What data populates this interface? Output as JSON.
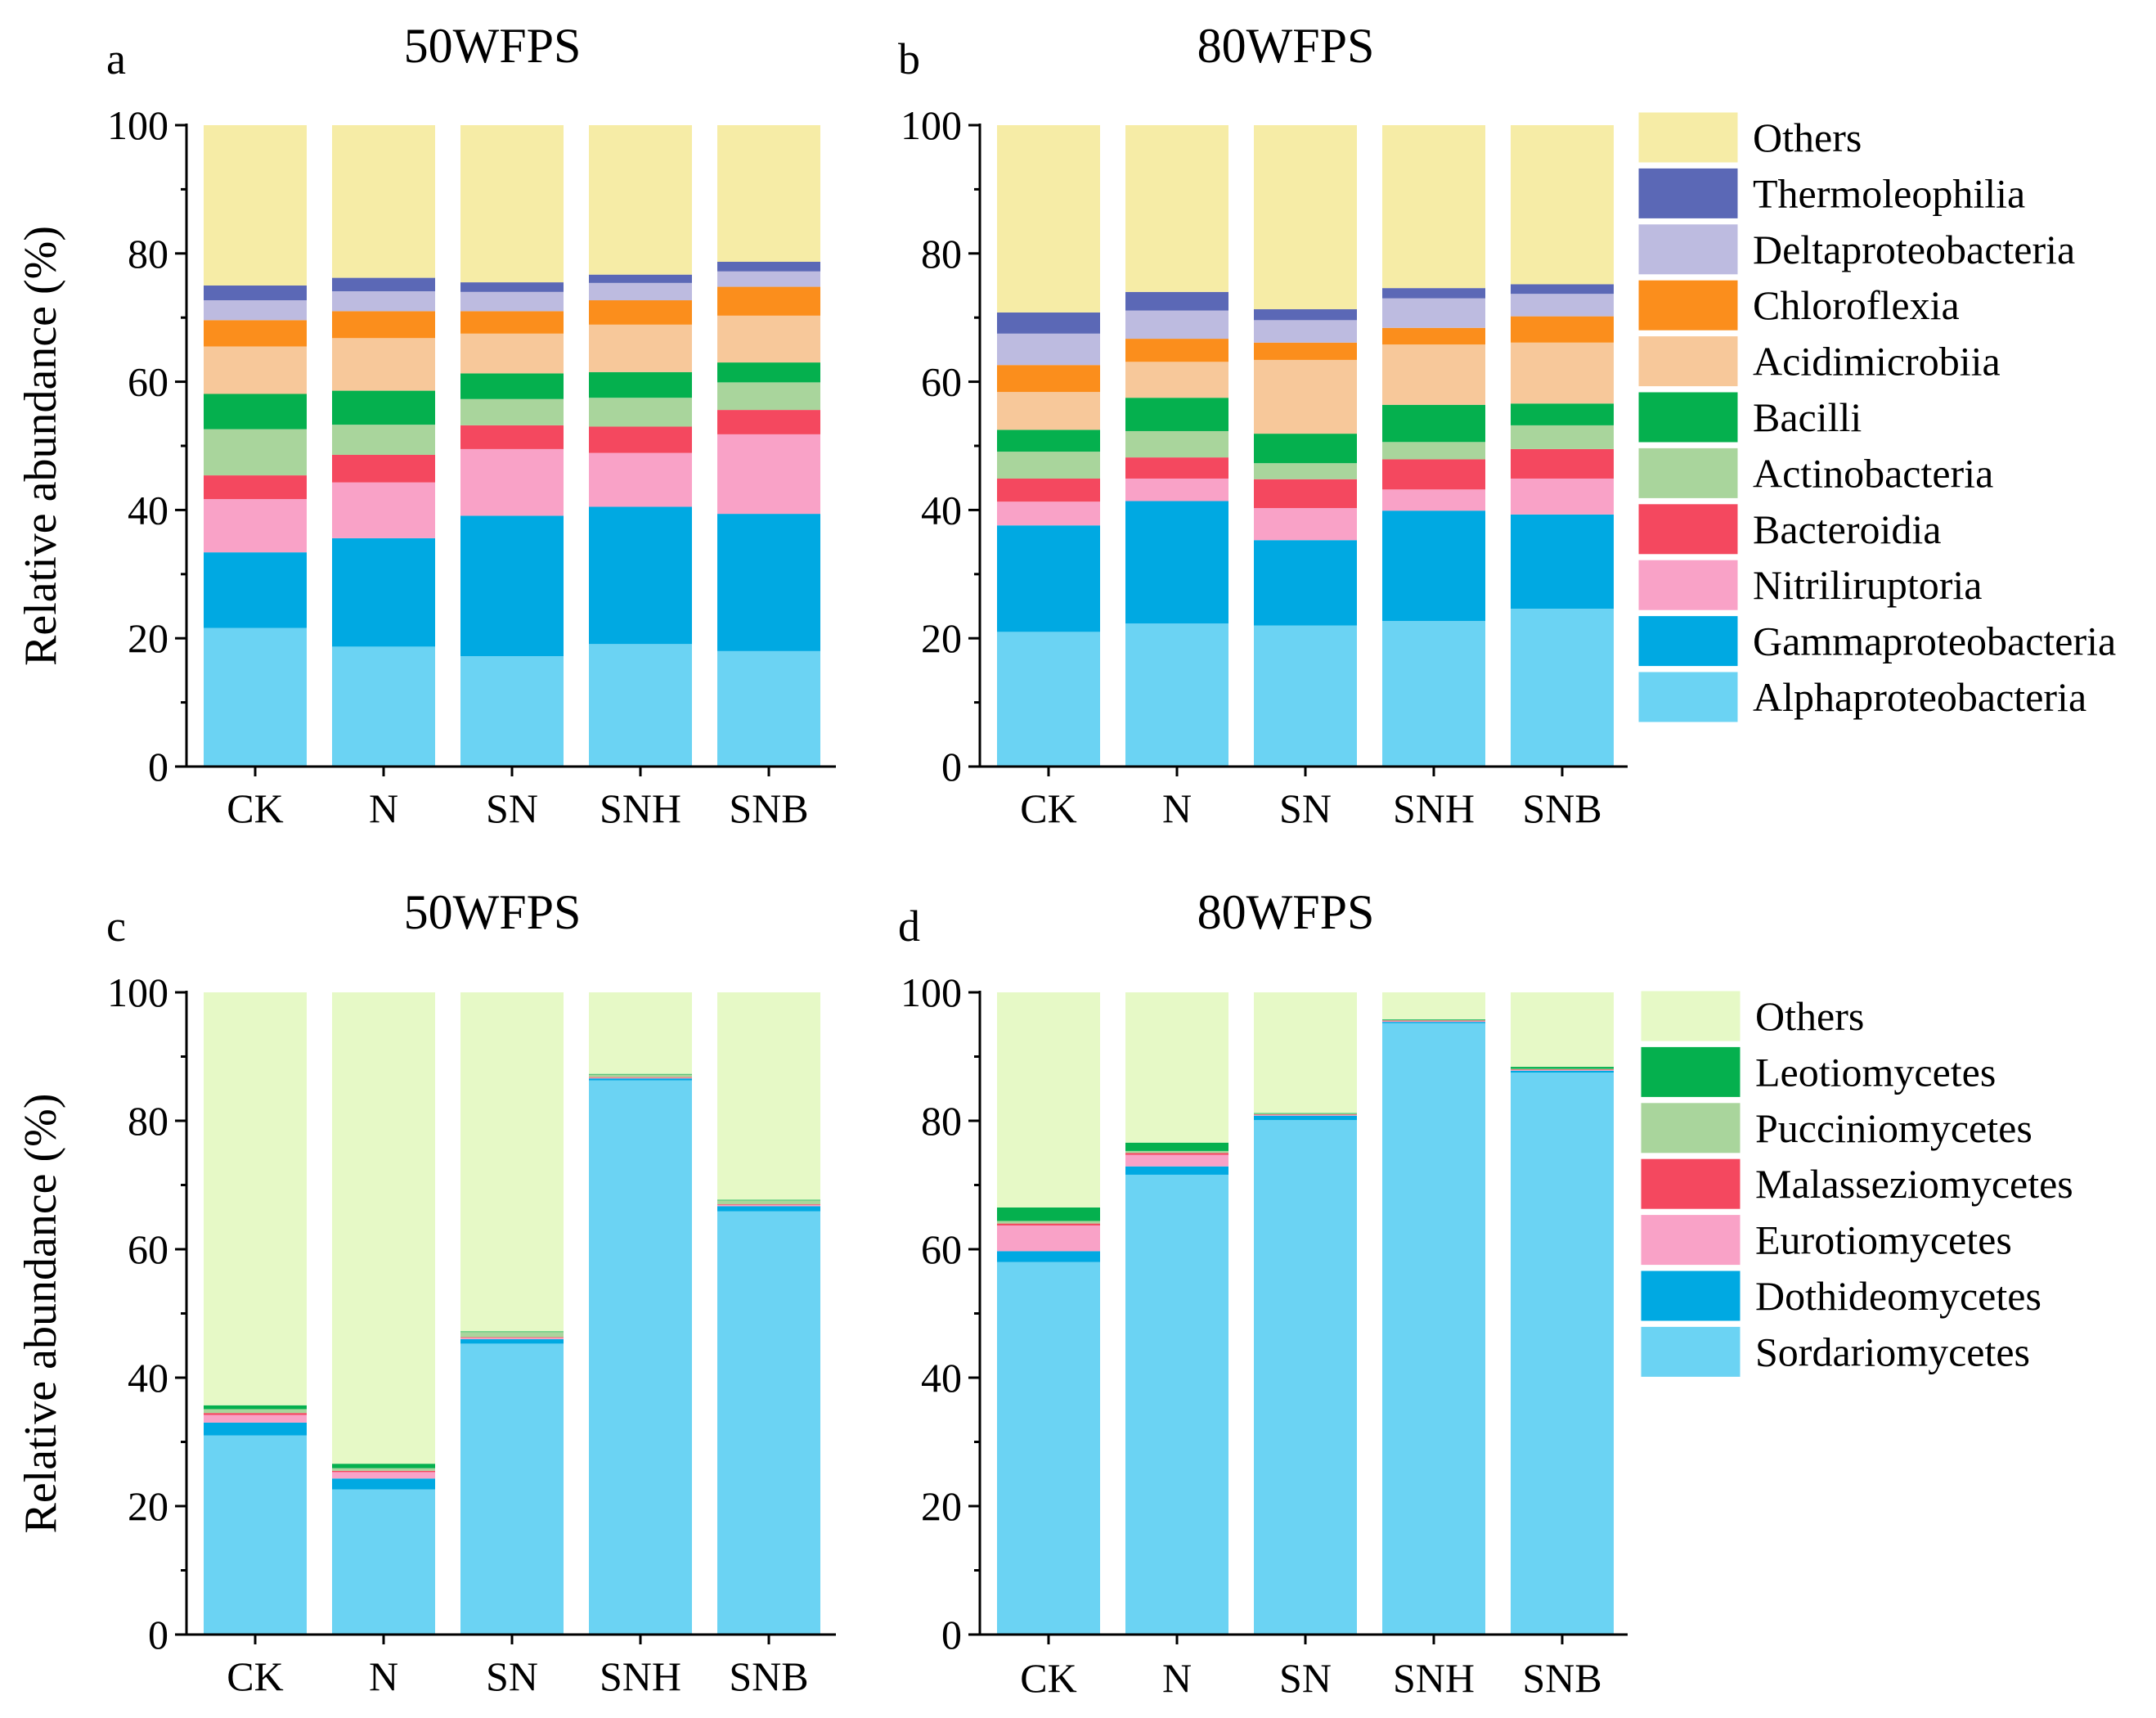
{
  "chart_data": [
    {
      "type": "bar",
      "stacked": true,
      "panel": "a",
      "title": "50WFPS",
      "ylabel": "Relative abundance (%)",
      "xlabel": "",
      "ylim": [
        0,
        100
      ],
      "yticks": [
        "0",
        "20",
        "40",
        "60",
        "80",
        "100"
      ],
      "categories": [
        "CK",
        "N",
        "SN",
        "SNH",
        "SNB"
      ],
      "series": [
        {
          "name": "Alphaproteobacteria",
          "color": "#6BD3F3",
          "values": [
            21.6,
            18.7,
            17.2,
            19.1,
            18.0
          ]
        },
        {
          "name": "Gammaproteobacteria",
          "color": "#00A9E2",
          "values": [
            11.8,
            16.9,
            21.9,
            21.4,
            21.4
          ]
        },
        {
          "name": "Nitriliruptoria",
          "color": "#F9A2C7",
          "values": [
            8.3,
            8.7,
            10.4,
            8.4,
            12.4
          ]
        },
        {
          "name": "Bacteroidia",
          "color": "#F4485F",
          "values": [
            3.7,
            4.3,
            3.7,
            4.1,
            3.8
          ]
        },
        {
          "name": "Actinobacteria",
          "color": "#A9D59C",
          "values": [
            7.2,
            4.7,
            4.1,
            4.5,
            4.3
          ]
        },
        {
          "name": "Bacilli",
          "color": "#05B04E",
          "values": [
            5.5,
            5.3,
            4.0,
            4.0,
            3.1
          ]
        },
        {
          "name": "Acidimicrobiia",
          "color": "#F7C89A",
          "values": [
            7.4,
            8.2,
            6.2,
            7.4,
            7.3
          ]
        },
        {
          "name": "Chloroflexia",
          "color": "#FB8E1C",
          "values": [
            4.1,
            4.2,
            3.5,
            3.8,
            4.5
          ]
        },
        {
          "name": "Deltaproteobacteria",
          "color": "#BDBBE0",
          "values": [
            3.1,
            3.1,
            3.0,
            2.7,
            2.4
          ]
        },
        {
          "name": "Thermoleophilia",
          "color": "#5B68B6",
          "values": [
            2.3,
            2.1,
            1.5,
            1.3,
            1.5
          ]
        },
        {
          "name": "Others",
          "color": "#F6ECA6",
          "values": [
            25.0,
            23.8,
            24.5,
            23.3,
            21.3
          ]
        }
      ]
    },
    {
      "type": "bar",
      "stacked": true,
      "panel": "b",
      "title": "80WFPS",
      "ylabel": "",
      "xlabel": "",
      "ylim": [
        0,
        100
      ],
      "yticks": [
        "0",
        "20",
        "40",
        "60",
        "80",
        "100"
      ],
      "categories": [
        "CK",
        "N",
        "SN",
        "SNH",
        "SNB"
      ],
      "legend": "right",
      "series": [
        {
          "name": "Alphaproteobacteria",
          "color": "#6BD3F3",
          "values": [
            21.0,
            22.3,
            22.0,
            22.7,
            24.6
          ]
        },
        {
          "name": "Gammaproteobacteria",
          "color": "#00A9E2",
          "values": [
            16.6,
            19.1,
            13.3,
            17.2,
            14.7
          ]
        },
        {
          "name": "Nitriliruptoria",
          "color": "#F9A2C7",
          "values": [
            3.7,
            3.5,
            5.0,
            3.3,
            5.6
          ]
        },
        {
          "name": "Bacteroidia",
          "color": "#F4485F",
          "values": [
            3.6,
            3.3,
            4.5,
            4.7,
            4.6
          ]
        },
        {
          "name": "Actinobacteria",
          "color": "#A9D59C",
          "values": [
            4.2,
            4.1,
            2.5,
            2.7,
            3.7
          ]
        },
        {
          "name": "Bacilli",
          "color": "#05B04E",
          "values": [
            3.4,
            5.2,
            4.6,
            5.8,
            3.4
          ]
        },
        {
          "name": "Acidimicrobiia",
          "color": "#F7C89A",
          "values": [
            5.9,
            5.6,
            11.5,
            9.4,
            9.5
          ]
        },
        {
          "name": "Chloroflexia",
          "color": "#FB8E1C",
          "values": [
            4.2,
            3.6,
            2.7,
            2.6,
            4.1
          ]
        },
        {
          "name": "Deltaproteobacteria",
          "color": "#BDBBE0",
          "values": [
            4.9,
            4.4,
            3.5,
            4.6,
            3.5
          ]
        },
        {
          "name": "Thermoleophilia",
          "color": "#5B68B6",
          "values": [
            3.3,
            2.9,
            1.7,
            1.6,
            1.5
          ]
        },
        {
          "name": "Others",
          "color": "#F6ECA6",
          "values": [
            29.2,
            26.0,
            28.7,
            25.4,
            24.8
          ]
        }
      ]
    },
    {
      "type": "bar",
      "stacked": true,
      "panel": "c",
      "title": "50WFPS",
      "ylabel": "Relative abundance (%)",
      "xlabel": "",
      "ylim": [
        0,
        100
      ],
      "yticks": [
        "0",
        "20",
        "40",
        "60",
        "80",
        "100"
      ],
      "categories": [
        "CK",
        "N",
        "SN",
        "SNH",
        "SNB"
      ],
      "series": [
        {
          "name": "Sordariomycetes",
          "color": "#6BD3F3",
          "values": [
            31.0,
            22.6,
            45.3,
            86.3,
            65.9
          ]
        },
        {
          "name": "Dothideomycetes",
          "color": "#00A9E2",
          "values": [
            2.0,
            1.7,
            0.7,
            0.3,
            0.8
          ]
        },
        {
          "name": "Eurotiomycetes",
          "color": "#F9A2C7",
          "values": [
            1.2,
            1.0,
            0.2,
            0.1,
            0.2
          ]
        },
        {
          "name": "Malasseziomycetes",
          "color": "#F4485F",
          "values": [
            0.3,
            0.2,
            0.1,
            0.1,
            0.1
          ]
        },
        {
          "name": "Pucciniomycetes",
          "color": "#A9D59C",
          "values": [
            0.6,
            0.4,
            0.8,
            0.4,
            0.6
          ]
        },
        {
          "name": "Leotiomycetes",
          "color": "#05B04E",
          "values": [
            0.6,
            0.7,
            0.1,
            0.1,
            0.1
          ]
        },
        {
          "name": "Others",
          "color": "#E6F9C6",
          "values": [
            64.3,
            73.4,
            52.8,
            12.7,
            32.3
          ]
        }
      ]
    },
    {
      "type": "bar",
      "stacked": true,
      "panel": "d",
      "title": "80WFPS",
      "ylabel": "",
      "xlabel": "",
      "ylim": [
        0,
        100
      ],
      "yticks": [
        "0",
        "20",
        "40",
        "60",
        "80",
        "100"
      ],
      "categories": [
        "CK",
        "N",
        "SN",
        "SNH",
        "SNB"
      ],
      "legend": "right",
      "series": [
        {
          "name": "Sordariomycetes",
          "color": "#6BD3F3",
          "values": [
            58.0,
            71.6,
            80.1,
            95.2,
            87.5
          ]
        },
        {
          "name": "Dothideomycetes",
          "color": "#00A9E2",
          "values": [
            1.7,
            1.3,
            0.7,
            0.2,
            0.3
          ]
        },
        {
          "name": "Eurotiomycetes",
          "color": "#F9A2C7",
          "values": [
            4.0,
            1.8,
            0.1,
            0.1,
            0.1
          ]
        },
        {
          "name": "Malasseziomycetes",
          "color": "#F4485F",
          "values": [
            0.3,
            0.3,
            0.1,
            0.1,
            0.1
          ]
        },
        {
          "name": "Pucciniomycetes",
          "color": "#A9D59C",
          "values": [
            0.4,
            0.3,
            0.1,
            0.1,
            0.1
          ]
        },
        {
          "name": "Leotiomycetes",
          "color": "#05B04E",
          "values": [
            2.1,
            1.3,
            0.1,
            0.1,
            0.3
          ]
        },
        {
          "name": "Others",
          "color": "#E6F9C6",
          "values": [
            33.5,
            23.4,
            18.8,
            4.2,
            11.6
          ]
        }
      ]
    }
  ]
}
